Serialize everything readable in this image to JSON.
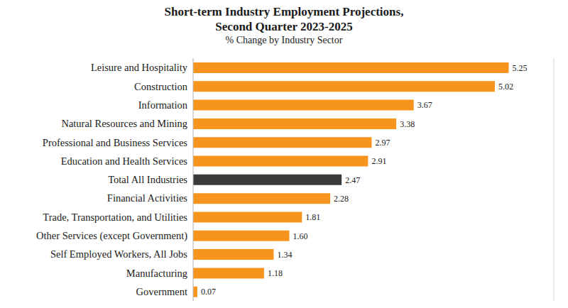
{
  "chart_data": {
    "type": "bar",
    "orientation": "horizontal",
    "title": "Short-term Industry Employment Projections,\nSecond Quarter 2023-2025",
    "subtitle": "% Change by Industry Sector",
    "categories": [
      "Leisure and Hospitality",
      "Construction",
      "Information",
      "Natural Resources and Mining",
      "Professional and Business Services",
      "Education and Health Services",
      "Total All Industries",
      "Financial Activities",
      "Trade, Transportation, and Utilities",
      "Other Services (except Government)",
      "Self Employed Workers, All Jobs",
      "Manufacturing",
      "Government"
    ],
    "values": [
      5.25,
      5.02,
      3.67,
      3.38,
      2.97,
      2.91,
      2.47,
      2.28,
      1.81,
      1.6,
      1.34,
      1.18,
      0.07
    ],
    "value_labels": [
      "5.25",
      "5.02",
      "3.67",
      "3.38",
      "2.97",
      "2.91",
      "2.47",
      "2.28",
      "1.81",
      "1.60",
      "1.34",
      "1.18",
      "0.07"
    ],
    "colors": [
      "#f7941d",
      "#f7941d",
      "#f7941d",
      "#f7941d",
      "#f7941d",
      "#f7941d",
      "#3a3a3a",
      "#f7941d",
      "#f7941d",
      "#f7941d",
      "#f7941d",
      "#f7941d",
      "#f7941d"
    ],
    "xlim": [
      0,
      6
    ],
    "xticks": [
      0,
      1,
      2,
      3,
      4,
      5,
      6
    ],
    "grid": true,
    "data_labels": true,
    "tick_labels": false
  }
}
